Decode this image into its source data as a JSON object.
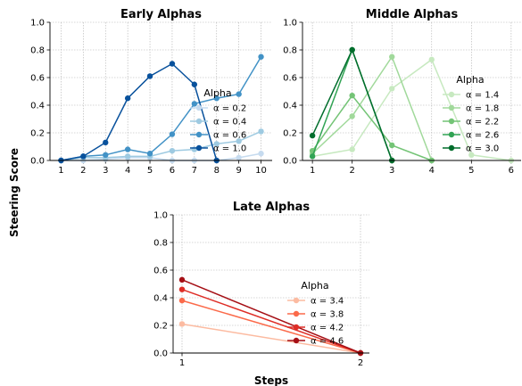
{
  "figure": {
    "ylabel": "Steering Score",
    "xlabel": "Steps"
  },
  "chart_data": [
    {
      "type": "line",
      "title": "Early Alphas",
      "x": [
        1,
        2,
        3,
        4,
        5,
        6,
        7,
        8,
        9,
        10
      ],
      "xlim": [
        0.5,
        10.5
      ],
      "ylim": [
        0,
        1.0
      ],
      "xticks": [
        "1",
        "2",
        "3",
        "4",
        "5",
        "6",
        "7",
        "8",
        "9",
        "10"
      ],
      "yticks": [
        "0.0",
        "0.2",
        "0.4",
        "0.6",
        "0.8",
        "1.0"
      ],
      "grid": true,
      "legend_title": "Alpha",
      "legend_position": "right",
      "series": [
        {
          "name": "α = 0.2",
          "color": "#c6dbef",
          "values": [
            0.0,
            0.0,
            0.01,
            0.02,
            0.02,
            0.0,
            0.0,
            0.0,
            0.02,
            0.05
          ]
        },
        {
          "name": "α = 0.4",
          "color": "#9ecae1",
          "values": [
            0.0,
            0.02,
            0.02,
            0.03,
            0.03,
            0.07,
            0.08,
            0.12,
            0.14,
            0.21
          ]
        },
        {
          "name": "α = 0.6",
          "color": "#4292c6",
          "values": [
            0.0,
            0.03,
            0.04,
            0.08,
            0.05,
            0.19,
            0.41,
            0.45,
            0.48,
            0.75
          ]
        },
        {
          "name": "α = 1.0",
          "color": "#08519c",
          "values": [
            0.0,
            0.03,
            0.13,
            0.45,
            0.61,
            0.7,
            0.55,
            0.0,
            null,
            null
          ]
        }
      ]
    },
    {
      "type": "line",
      "title": "Middle Alphas",
      "x": [
        1,
        2,
        3,
        4,
        5,
        6
      ],
      "xlim": [
        0.75,
        6.25
      ],
      "ylim": [
        0,
        1.0
      ],
      "xticks": [
        "1",
        "2",
        "3",
        "4",
        "5",
        "6"
      ],
      "yticks": [
        "0.0",
        "0.2",
        "0.4",
        "0.6",
        "0.8",
        "1.0"
      ],
      "grid": true,
      "legend_title": "Alpha",
      "legend_position": "right",
      "series": [
        {
          "name": "α = 1.4",
          "color": "#c7e9c0",
          "values": [
            0.03,
            0.08,
            0.52,
            0.73,
            0.04,
            0.0
          ]
        },
        {
          "name": "α = 1.8",
          "color": "#a1d99b",
          "values": [
            0.05,
            0.32,
            0.75,
            0.0,
            null,
            null
          ]
        },
        {
          "name": "α = 2.2",
          "color": "#74c476",
          "values": [
            0.07,
            0.47,
            0.11,
            0.0,
            null,
            null
          ]
        },
        {
          "name": "α = 2.6",
          "color": "#31a354",
          "values": [
            0.03,
            0.8,
            0.0,
            null,
            null,
            null
          ]
        },
        {
          "name": "α = 3.0",
          "color": "#006d2c",
          "values": [
            0.18,
            0.8,
            0.0,
            null,
            null,
            null
          ]
        }
      ]
    },
    {
      "type": "line",
      "title": "Late Alphas",
      "x": [
        1,
        2
      ],
      "xlim": [
        0.95,
        2.05
      ],
      "ylim": [
        0,
        1.0
      ],
      "xticks": [
        "1",
        "2"
      ],
      "yticks": [
        "0.0",
        "0.2",
        "0.4",
        "0.6",
        "0.8",
        "1.0"
      ],
      "grid": true,
      "legend_title": "Alpha",
      "legend_position": "right",
      "series": [
        {
          "name": "α = 3.4",
          "color": "#fcbba1",
          "values": [
            0.21,
            0.0
          ]
        },
        {
          "name": "α = 3.8",
          "color": "#fb6a4a",
          "values": [
            0.38,
            0.0
          ]
        },
        {
          "name": "α = 4.2",
          "color": "#de2d26",
          "values": [
            0.46,
            0.0
          ]
        },
        {
          "name": "α = 4.6",
          "color": "#a50f15",
          "values": [
            0.53,
            0.0
          ]
        }
      ]
    }
  ]
}
